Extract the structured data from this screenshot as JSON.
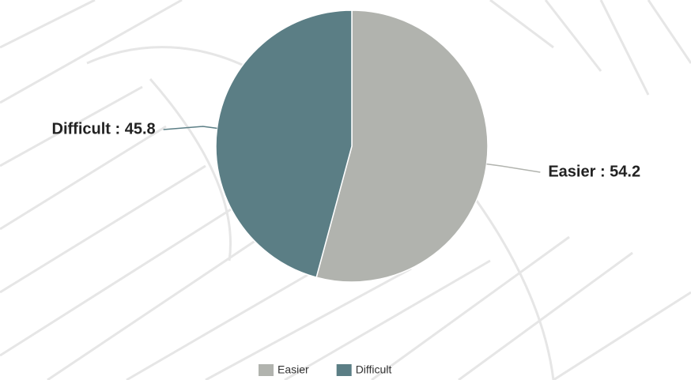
{
  "chart_data": {
    "type": "pie",
    "categories": [
      "Easier",
      "Difficult"
    ],
    "values": [
      54.2,
      45.8
    ],
    "value_labels": [
      "Easier : 54.2",
      "Difficult : 45.8"
    ],
    "colors": [
      "#b1b3ae",
      "#5b7e85"
    ],
    "legend": "bottom"
  }
}
